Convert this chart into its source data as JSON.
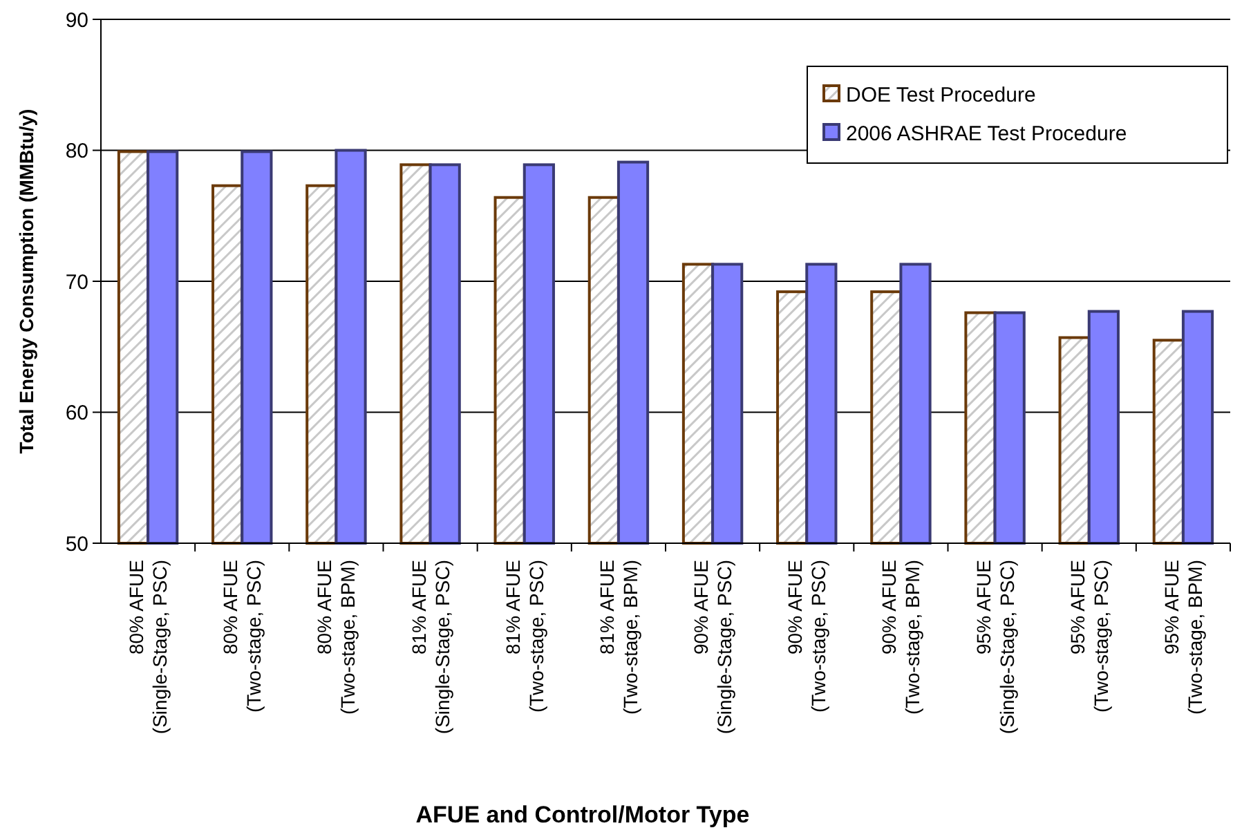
{
  "chart_data": {
    "type": "bar",
    "xlabel": "AFUE and Control/Motor Type",
    "ylabel": "Total Energy Consumption (MMBtu/y)",
    "categories": [
      "80% AFUE\n(Single-Stage, PSC)",
      "80% AFUE\n(Two-stage, PSC)",
      "80% AFUE\n(Two-stage, BPM)",
      "81% AFUE\n(Single-Stage, PSC)",
      "81% AFUE\n(Two-stage, PSC)",
      "81% AFUE\n(Two-stage, BPM)",
      "90% AFUE\n(Single-Stage, PSC)",
      "90% AFUE\n(Two-stage, PSC)",
      "90% AFUE\n(Two-stage, BPM)",
      "95% AFUE\n(Single-Stage, PSC)",
      "95% AFUE\n(Two-stage, PSC)",
      "95% AFUE\n(Two-stage, BPM)"
    ],
    "series": [
      {
        "name": "DOE Test Procedure",
        "color": "#6b3a0a",
        "values": [
          79.9,
          77.3,
          77.3,
          78.9,
          76.4,
          76.4,
          71.3,
          69.2,
          69.2,
          67.6,
          65.7,
          65.5
        ]
      },
      {
        "name": "2006 ASHRAE Test Procedure",
        "color": "#8080ff",
        "values": [
          79.9,
          79.9,
          80.0,
          78.9,
          78.9,
          79.1,
          71.3,
          71.3,
          71.3,
          67.6,
          67.7,
          67.7
        ]
      }
    ],
    "ylim": [
      50,
      90
    ],
    "yticks": [
      50,
      60,
      70,
      80,
      90
    ],
    "grid": "y",
    "legend": "top right"
  }
}
